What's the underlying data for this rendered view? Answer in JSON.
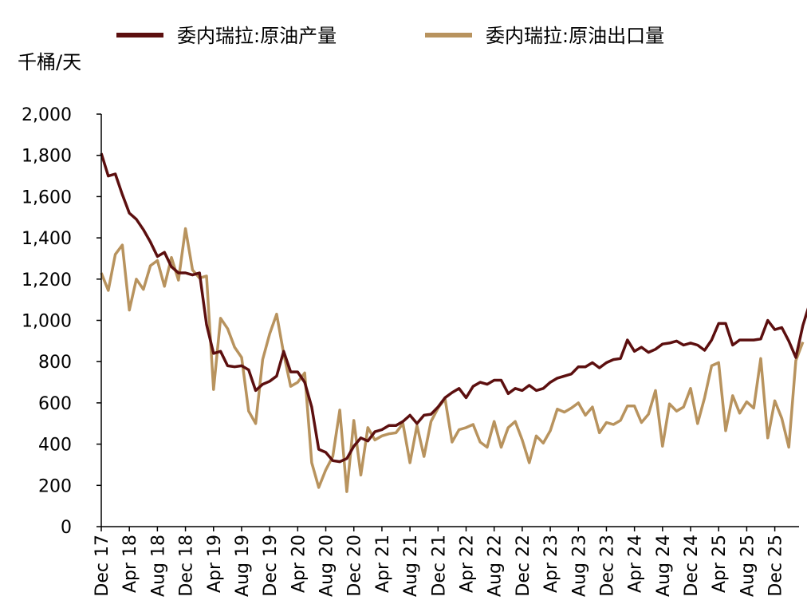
{
  "chart_data": {
    "type": "line",
    "unit_label": "千桶/天",
    "ylim": [
      0,
      2000
    ],
    "y_ticks": [
      "0",
      "200",
      "400",
      "600",
      "800",
      "1,000",
      "1,200",
      "1,400",
      "1,600",
      "1,800",
      "2,000"
    ],
    "y_tick_values": [
      0,
      200,
      400,
      600,
      800,
      1000,
      1200,
      1400,
      1600,
      1800,
      2000
    ],
    "x_tick_labels": [
      "Dec 17",
      "Apr 18",
      "Aug 18",
      "Dec 18",
      "Apr 19",
      "Aug 19",
      "Dec 19",
      "Apr 20",
      "Aug 20",
      "Dec 20",
      "Apr 21",
      "Aug 21",
      "Dec 21",
      "Apr 22",
      "Aug 22",
      "Dec 22",
      "Apr 23",
      "Aug 23",
      "Dec 23",
      "Apr 24",
      "Aug 24",
      "Dec 24",
      "Apr 25",
      "Aug 25",
      "Dec 25"
    ],
    "x_tick_months": [
      0,
      4,
      8,
      12,
      16,
      20,
      24,
      28,
      32,
      36,
      40,
      44,
      48,
      52,
      56,
      60,
      64,
      68,
      72,
      76,
      80,
      84,
      88,
      92,
      96
    ],
    "x_range_months": [
      0,
      99
    ],
    "series": [
      {
        "name": "委内瑞拉:原油产量",
        "color": "#5c0f0f",
        "values": [
          1810,
          1700,
          1710,
          1610,
          1520,
          1490,
          1440,
          1380,
          1310,
          1330,
          1260,
          1230,
          1230,
          1220,
          1230,
          980,
          840,
          850,
          780,
          775,
          780,
          760,
          660,
          690,
          705,
          730,
          850,
          750,
          750,
          700,
          580,
          375,
          360,
          320,
          315,
          330,
          390,
          430,
          415,
          460,
          470,
          490,
          490,
          510,
          540,
          500,
          540,
          545,
          580,
          625,
          650,
          670,
          625,
          680,
          700,
          690,
          710,
          710,
          645,
          670,
          660,
          685,
          660,
          670,
          700,
          720,
          730,
          740,
          775,
          775,
          795,
          770,
          795,
          810,
          815,
          905,
          850,
          870,
          845,
          860,
          885,
          890,
          900,
          880,
          890,
          880,
          855,
          905,
          985,
          985,
          880,
          905,
          905,
          905,
          910,
          1000,
          955,
          965,
          900,
          820,
          975,
          1085
        ]
      },
      {
        "name": "委内瑞拉:原油出口量",
        "color": "#b8935e",
        "values": [
          1230,
          1145,
          1320,
          1365,
          1050,
          1200,
          1150,
          1265,
          1290,
          1165,
          1305,
          1195,
          1445,
          1245,
          1205,
          1215,
          665,
          1010,
          960,
          870,
          820,
          560,
          500,
          810,
          935,
          1030,
          840,
          680,
          700,
          745,
          310,
          190,
          275,
          340,
          565,
          170,
          515,
          250,
          480,
          420,
          440,
          450,
          455,
          500,
          310,
          490,
          340,
          510,
          575,
          620,
          410,
          470,
          480,
          495,
          410,
          385,
          510,
          385,
          480,
          510,
          420,
          310,
          440,
          405,
          465,
          570,
          555,
          575,
          600,
          540,
          580,
          455,
          505,
          495,
          515,
          585,
          585,
          505,
          545,
          660,
          390,
          595,
          560,
          580,
          670,
          500,
          625,
          780,
          795,
          465,
          635,
          550,
          605,
          575,
          815,
          430,
          610,
          525,
          385,
          805,
          895
        ]
      }
    ]
  }
}
